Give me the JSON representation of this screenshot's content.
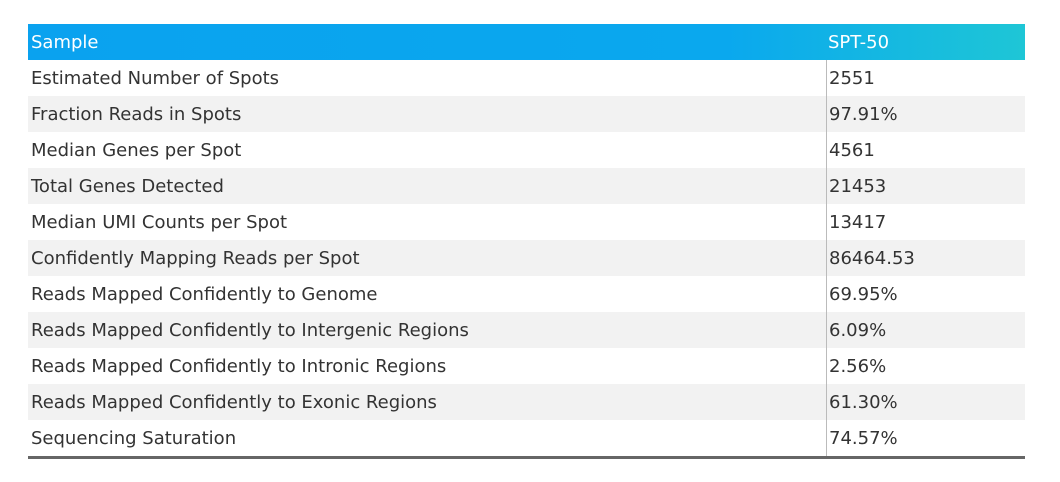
{
  "table": {
    "header": [
      "Sample",
      "SPT-50"
    ],
    "rows": [
      [
        "Estimated Number of Spots",
        "2551"
      ],
      [
        "Fraction Reads in Spots",
        "97.91%"
      ],
      [
        "Median Genes per Spot",
        "4561"
      ],
      [
        "Total Genes Detected",
        "21453"
      ],
      [
        "Median UMI Counts per Spot",
        "13417"
      ],
      [
        "Confidently Mapping Reads per Spot",
        "86464.53"
      ],
      [
        "Reads Mapped Confidently to Genome",
        "69.95%"
      ],
      [
        "Reads Mapped Confidently to Intergenic Regions",
        "6.09%"
      ],
      [
        "Reads Mapped Confidently to Intronic Regions",
        "2.56%"
      ],
      [
        "Reads Mapped Confidently to Exonic Regions",
        "61.30%"
      ],
      [
        "Sequencing Saturation",
        "74.57%"
      ]
    ]
  }
}
